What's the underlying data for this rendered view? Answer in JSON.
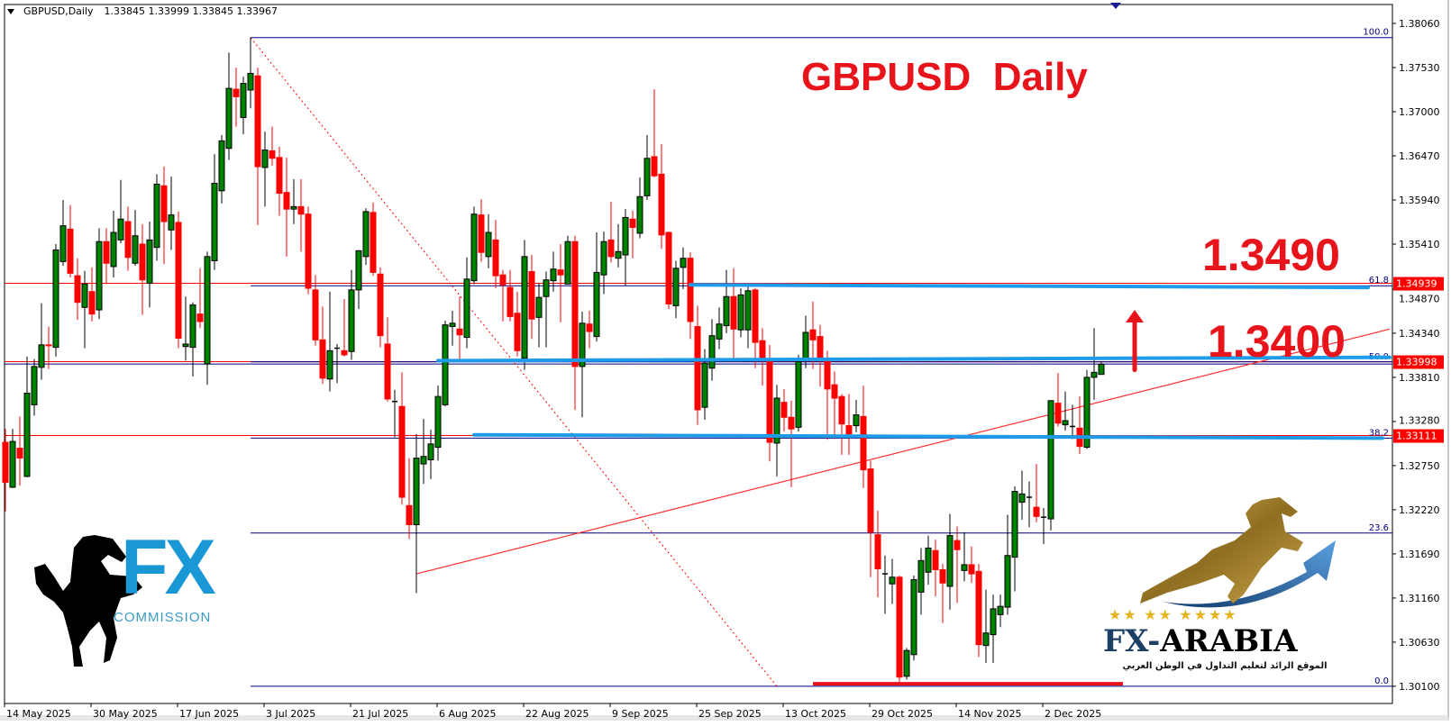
{
  "header": {
    "symbol": "GBPUSD,Daily",
    "ohlc": "1.33845 1.33999 1.33845 1.33967"
  },
  "annotations": {
    "title": "GBPUSD  Daily",
    "target_label": "1.3490",
    "level_label": "1.3400"
  },
  "logos": {
    "left": {
      "brand": "FX",
      "sub": "COMMISSION"
    },
    "right": {
      "brand_fx": "FX-",
      "brand_arabia": "ARABIA",
      "tagline": "الموقع الرائد لتعليم التداول في الوطن العربي"
    }
  },
  "colors": {
    "bull": "#008000",
    "bear": "#ff0000",
    "wick_bull": "#000000",
    "fib": "#000080",
    "price_line": "#ff0000",
    "blue_levels": "#1e9be9",
    "annotation": "#e8141c",
    "logo_blue": "#1a98d5",
    "logo_gold": "#a8872f"
  },
  "chart_data": {
    "type": "candlestick",
    "symbol": "GBPUSD",
    "timeframe": "Daily",
    "ylim": [
      1.2995,
      1.3835
    ],
    "y_ticks": [
      "1.38060",
      "1.37530",
      "1.37000",
      "1.36470",
      "1.35940",
      "1.35410",
      "1.34870",
      "1.34340",
      "1.33810",
      "1.33280",
      "1.32750",
      "1.32220",
      "1.31690",
      "1.31160",
      "1.30630",
      "1.30100"
    ],
    "x_ticks": [
      {
        "bar": 0,
        "label": "14 May 2025"
      },
      {
        "bar": 12,
        "label": "30 May 2025"
      },
      {
        "bar": 24,
        "label": "17 Jun 2025"
      },
      {
        "bar": 36,
        "label": "3 Jul 2025"
      },
      {
        "bar": 48,
        "label": "21 Jul 2025"
      },
      {
        "bar": 60,
        "label": "6 Aug 2025"
      },
      {
        "bar": 72,
        "label": "22 Aug 2025"
      },
      {
        "bar": 84,
        "label": "9 Sep 2025"
      },
      {
        "bar": 96,
        "label": "25 Sep 2025"
      },
      {
        "bar": 108,
        "label": "13 Oct 2025"
      },
      {
        "bar": 120,
        "label": "29 Oct 2025"
      },
      {
        "bar": 132,
        "label": "14 Nov 2025"
      },
      {
        "bar": 144,
        "label": "2 Dec 2025"
      }
    ],
    "ohlc_fields": [
      "open",
      "high",
      "low",
      "close"
    ],
    "candles": [
      [
        1.3303,
        1.3319,
        1.322,
        1.3255
      ],
      [
        1.3249,
        1.3319,
        1.3248,
        1.3304
      ],
      [
        1.3296,
        1.3334,
        1.3251,
        1.3284
      ],
      [
        1.3262,
        1.3406,
        1.3261,
        1.3362
      ],
      [
        1.3348,
        1.3403,
        1.3335,
        1.3394
      ],
      [
        1.3393,
        1.347,
        1.3378,
        1.342
      ],
      [
        1.342,
        1.3442,
        1.3391,
        1.3419
      ],
      [
        1.3417,
        1.3541,
        1.3406,
        1.3534
      ],
      [
        1.352,
        1.3594,
        1.3515,
        1.3563
      ],
      [
        1.3559,
        1.3588,
        1.3501,
        1.3506
      ],
      [
        1.3503,
        1.3524,
        1.345,
        1.3471
      ],
      [
        1.3465,
        1.3509,
        1.3416,
        1.3493
      ],
      [
        1.3484,
        1.3513,
        1.3448,
        1.3457
      ],
      [
        1.3462,
        1.356,
        1.3451,
        1.3544
      ],
      [
        1.3544,
        1.356,
        1.3493,
        1.3518
      ],
      [
        1.3514,
        1.3581,
        1.3501,
        1.3555
      ],
      [
        1.3546,
        1.3618,
        1.3542,
        1.3571
      ],
      [
        1.3568,
        1.3586,
        1.3509,
        1.3525
      ],
      [
        1.3518,
        1.3582,
        1.3515,
        1.3551
      ],
      [
        1.3541,
        1.3565,
        1.3456,
        1.3498
      ],
      [
        1.3494,
        1.3568,
        1.3465,
        1.3546
      ],
      [
        1.3537,
        1.3625,
        1.3521,
        1.3613
      ],
      [
        1.3611,
        1.3634,
        1.3517,
        1.3568
      ],
      [
        1.3558,
        1.3622,
        1.3534,
        1.3576
      ],
      [
        1.3567,
        1.358,
        1.3416,
        1.3428
      ],
      [
        1.3418,
        1.3478,
        1.3401,
        1.3421
      ],
      [
        1.3417,
        1.3471,
        1.3382,
        1.3468
      ],
      [
        1.3457,
        1.3512,
        1.344,
        1.3448
      ],
      [
        1.3397,
        1.3532,
        1.3372,
        1.3526
      ],
      [
        1.3521,
        1.3649,
        1.351,
        1.3614
      ],
      [
        1.3605,
        1.3672,
        1.359,
        1.3665
      ],
      [
        1.3656,
        1.3771,
        1.3642,
        1.3728
      ],
      [
        1.3727,
        1.3753,
        1.3682,
        1.3718
      ],
      [
        1.3693,
        1.3742,
        1.3673,
        1.3734
      ],
      [
        1.3726,
        1.3789,
        1.3704,
        1.3746
      ],
      [
        1.3743,
        1.3753,
        1.3564,
        1.3634
      ],
      [
        1.3633,
        1.3676,
        1.3586,
        1.3654
      ],
      [
        1.3653,
        1.3682,
        1.3635,
        1.3644
      ],
      [
        1.3645,
        1.3658,
        1.3575,
        1.3602
      ],
      [
        1.3603,
        1.3645,
        1.3526,
        1.3583
      ],
      [
        1.3583,
        1.3619,
        1.3565,
        1.3586
      ],
      [
        1.3586,
        1.3619,
        1.3532,
        1.3577
      ],
      [
        1.3577,
        1.3586,
        1.3481,
        1.3488
      ],
      [
        1.3486,
        1.3504,
        1.3419,
        1.3426
      ],
      [
        1.3426,
        1.3466,
        1.3373,
        1.338
      ],
      [
        1.3379,
        1.3484,
        1.3364,
        1.3413
      ],
      [
        1.3416,
        1.3421,
        1.3374,
        1.3416
      ],
      [
        1.3413,
        1.3475,
        1.3406,
        1.3408
      ],
      [
        1.3412,
        1.351,
        1.3402,
        1.3486
      ],
      [
        1.3486,
        1.3534,
        1.3463,
        1.3533
      ],
      [
        1.3526,
        1.3584,
        1.3516,
        1.358
      ],
      [
        1.3579,
        1.3591,
        1.3503,
        1.3507
      ],
      [
        1.3505,
        1.3513,
        1.3417,
        1.3431
      ],
      [
        1.3421,
        1.3453,
        1.3352,
        1.3355
      ],
      [
        1.3352,
        1.3366,
        1.3309,
        1.3352
      ],
      [
        1.3346,
        1.3387,
        1.3228,
        1.3237
      ],
      [
        1.3227,
        1.3284,
        1.3187,
        1.3204
      ],
      [
        1.3204,
        1.3313,
        1.3122,
        1.3284
      ],
      [
        1.3277,
        1.3331,
        1.3253,
        1.3286
      ],
      [
        1.3282,
        1.3318,
        1.3259,
        1.3301
      ],
      [
        1.3297,
        1.3371,
        1.3281,
        1.3358
      ],
      [
        1.3348,
        1.3449,
        1.3346,
        1.3444
      ],
      [
        1.3442,
        1.3461,
        1.3419,
        1.3446
      ],
      [
        1.3439,
        1.3478,
        1.3403,
        1.3432
      ],
      [
        1.3429,
        1.3525,
        1.3416,
        1.3499
      ],
      [
        1.3497,
        1.3586,
        1.3493,
        1.3577
      ],
      [
        1.3576,
        1.3595,
        1.352,
        1.3531
      ],
      [
        1.3526,
        1.3577,
        1.3512,
        1.3555
      ],
      [
        1.3546,
        1.357,
        1.3488,
        1.3503
      ],
      [
        1.3504,
        1.351,
        1.3448,
        1.3492
      ],
      [
        1.3489,
        1.351,
        1.3448,
        1.3454
      ],
      [
        1.3458,
        1.3484,
        1.3406,
        1.3413
      ],
      [
        1.3404,
        1.3546,
        1.339,
        1.3526
      ],
      [
        1.3508,
        1.3528,
        1.3427,
        1.3451
      ],
      [
        1.3453,
        1.3494,
        1.3417,
        1.3477
      ],
      [
        1.3478,
        1.3508,
        1.3417,
        1.3498
      ],
      [
        1.3497,
        1.3532,
        1.3484,
        1.3511
      ],
      [
        1.351,
        1.3541,
        1.3447,
        1.3504
      ],
      [
        1.3493,
        1.3551,
        1.3493,
        1.3544
      ],
      [
        1.3544,
        1.3551,
        1.3342,
        1.3394
      ],
      [
        1.3394,
        1.346,
        1.3333,
        1.3446
      ],
      [
        1.3445,
        1.3461,
        1.3416,
        1.3436
      ],
      [
        1.343,
        1.3555,
        1.3424,
        1.3507
      ],
      [
        1.3504,
        1.3556,
        1.3481,
        1.3544
      ],
      [
        1.3546,
        1.3592,
        1.3519,
        1.3526
      ],
      [
        1.3524,
        1.3565,
        1.3513,
        1.3532
      ],
      [
        1.3528,
        1.3583,
        1.3491,
        1.3573
      ],
      [
        1.3571,
        1.3581,
        1.3524,
        1.3561
      ],
      [
        1.3554,
        1.3621,
        1.3548,
        1.3598
      ],
      [
        1.3599,
        1.3672,
        1.3594,
        1.3644
      ],
      [
        1.3646,
        1.3727,
        1.3621,
        1.3623
      ],
      [
        1.3625,
        1.3661,
        1.3535,
        1.3552
      ],
      [
        1.3555,
        1.3556,
        1.3463,
        1.3469
      ],
      [
        1.3467,
        1.3521,
        1.3452,
        1.3512
      ],
      [
        1.3513,
        1.3537,
        1.3487,
        1.3524
      ],
      [
        1.3524,
        1.3531,
        1.3427,
        1.3448
      ],
      [
        1.3442,
        1.3467,
        1.3324,
        1.3342
      ],
      [
        1.3345,
        1.3415,
        1.333,
        1.3398
      ],
      [
        1.3392,
        1.3451,
        1.3377,
        1.3431
      ],
      [
        1.3427,
        1.3465,
        1.3415,
        1.3445
      ],
      [
        1.3443,
        1.351,
        1.3434,
        1.3478
      ],
      [
        1.3478,
        1.3512,
        1.3404,
        1.3439
      ],
      [
        1.3438,
        1.3488,
        1.3429,
        1.348
      ],
      [
        1.3438,
        1.3491,
        1.3416,
        1.3485
      ],
      [
        1.3486,
        1.3488,
        1.3392,
        1.3423
      ],
      [
        1.3425,
        1.344,
        1.3371,
        1.3402
      ],
      [
        1.34,
        1.342,
        1.328,
        1.3303
      ],
      [
        1.3302,
        1.3372,
        1.3262,
        1.3356
      ],
      [
        1.3351,
        1.3367,
        1.3316,
        1.3333
      ],
      [
        1.3333,
        1.3353,
        1.3249,
        1.3319
      ],
      [
        1.3321,
        1.3408,
        1.3316,
        1.34
      ],
      [
        1.3402,
        1.3455,
        1.3392,
        1.3435
      ],
      [
        1.3438,
        1.3472,
        1.3391,
        1.3426
      ],
      [
        1.343,
        1.3444,
        1.337,
        1.3402
      ],
      [
        1.34,
        1.3413,
        1.3306,
        1.3367
      ],
      [
        1.3372,
        1.3388,
        1.3307,
        1.3356
      ],
      [
        1.3358,
        1.3361,
        1.3288,
        1.3325
      ],
      [
        1.3323,
        1.3361,
        1.3288,
        1.3313
      ],
      [
        1.3323,
        1.3354,
        1.3315,
        1.3336
      ],
      [
        1.3334,
        1.3371,
        1.3248,
        1.327
      ],
      [
        1.3271,
        1.3281,
        1.3141,
        1.3195
      ],
      [
        1.3192,
        1.3221,
        1.3117,
        1.3151
      ],
      [
        1.3145,
        1.3167,
        1.3097,
        1.3145
      ],
      [
        1.3133,
        1.3163,
        1.3109,
        1.3141
      ],
      [
        1.3141,
        1.3143,
        1.3015,
        1.3021
      ],
      [
        1.3022,
        1.3056,
        1.3018,
        1.3053
      ],
      [
        1.3048,
        1.3143,
        1.3041,
        1.3138
      ],
      [
        1.3123,
        1.3176,
        1.3096,
        1.3161
      ],
      [
        1.3147,
        1.3191,
        1.3132,
        1.3176
      ],
      [
        1.3173,
        1.3186,
        1.3118,
        1.315
      ],
      [
        1.315,
        1.3157,
        1.3086,
        1.3134
      ],
      [
        1.313,
        1.3217,
        1.3102,
        1.3191
      ],
      [
        1.3185,
        1.3202,
        1.311,
        1.3174
      ],
      [
        1.3149,
        1.3195,
        1.3136,
        1.3156
      ],
      [
        1.3156,
        1.3178,
        1.3134,
        1.3145
      ],
      [
        1.3148,
        1.3157,
        1.3045,
        1.306
      ],
      [
        1.3059,
        1.3126,
        1.3038,
        1.3074
      ],
      [
        1.3072,
        1.312,
        1.3038,
        1.3103
      ],
      [
        1.3096,
        1.312,
        1.3081,
        1.3106
      ],
      [
        1.3105,
        1.3216,
        1.3096,
        1.3167
      ],
      [
        1.3165,
        1.325,
        1.3124,
        1.3244
      ],
      [
        1.3231,
        1.3269,
        1.321,
        1.3241
      ],
      [
        1.3237,
        1.3256,
        1.3201,
        1.3237
      ],
      [
        1.3225,
        1.3277,
        1.3207,
        1.3214
      ],
      [
        1.3213,
        1.3224,
        1.3181,
        1.3213
      ],
      [
        1.3211,
        1.3353,
        1.3197,
        1.3353
      ],
      [
        1.335,
        1.3386,
        1.3322,
        1.3326
      ],
      [
        1.3324,
        1.3364,
        1.3317,
        1.3329
      ],
      [
        1.3322,
        1.3348,
        1.3307,
        1.3322
      ],
      [
        1.332,
        1.3358,
        1.3289,
        1.3298
      ],
      [
        1.3297,
        1.339,
        1.3295,
        1.3381
      ],
      [
        1.3381,
        1.344,
        1.3354,
        1.3387
      ],
      [
        1.33845,
        1.33999,
        1.33845,
        1.33967
      ]
    ],
    "fibonacci": {
      "from_bar": 34,
      "high": 1.3789,
      "low": 1.301,
      "levels": [
        {
          "label": "100.0",
          "price": 1.3789
        },
        {
          "label": "61.8",
          "price": 1.3491
        },
        {
          "label": "50.0",
          "price": 1.33995
        },
        {
          "label": "38.2",
          "price": 1.3308
        },
        {
          "label": "23.6",
          "price": 1.3194
        },
        {
          "label": "0.0",
          "price": 1.301
        }
      ]
    },
    "price_lines": [
      {
        "price": 1.34939,
        "label": "1.34939"
      },
      {
        "price": 1.33998,
        "label": "1.33998"
      },
      {
        "price": 1.33111,
        "label": "1.33111"
      }
    ],
    "bid_line": 1.3397,
    "blue_levels": [
      {
        "from_bar": 95,
        "to_bar": 189,
        "from_price": 1.3492,
        "to_price": 1.3489
      },
      {
        "from_bar": 60,
        "to_bar": 192,
        "from_price": 1.3401,
        "to_price": 1.3405
      },
      {
        "from_bar": 65,
        "to_bar": 191,
        "from_price": 1.3312,
        "to_price": 1.3308
      }
    ],
    "support_bar": {
      "from_bar": 112,
      "to_bar": 155,
      "price": 1.3013
    },
    "trendline": {
      "from_bar": 57,
      "from_price": 1.3145,
      "to_bar": 192,
      "to_price": 1.3439
    },
    "dashed_line": {
      "from_bar": 34,
      "from_price": 1.3789,
      "to_bar": 107,
      "to_price": 1.301
    },
    "arrow_up": {
      "bar": 156,
      "from_price": 1.339,
      "to_price": 1.3462
    }
  }
}
